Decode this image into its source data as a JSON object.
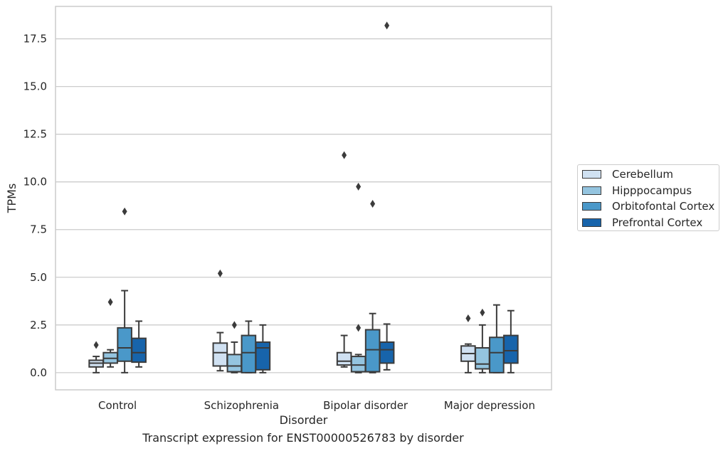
{
  "chart_data": {
    "type": "box",
    "title": "",
    "caption": "Transcript expression for ENST00000526783 by disorder",
    "xlabel": "Disorder",
    "ylabel": "TPMs",
    "ylim": [
      -0.9,
      19.2
    ],
    "yticks": [
      "0.0",
      "2.5",
      "5.0",
      "7.5",
      "10.0",
      "12.5",
      "15.0",
      "17.5"
    ],
    "categories": [
      "Control",
      "Schizophrenia",
      "Bipolar disorder",
      "Major depression"
    ],
    "grid": true,
    "legend_position": "right",
    "series": [
      {
        "name": "Cerebellum",
        "color": "#d0e1f2",
        "boxes": [
          {
            "whisker_low": 0.0,
            "q1": 0.3,
            "median": 0.5,
            "q3": 0.65,
            "whisker_high": 0.85,
            "outliers": [
              1.45
            ]
          },
          {
            "whisker_low": 0.1,
            "q1": 0.35,
            "median": 1.05,
            "q3": 1.55,
            "whisker_high": 2.1,
            "outliers": [
              5.2
            ]
          },
          {
            "whisker_low": 0.3,
            "q1": 0.4,
            "median": 0.6,
            "q3": 1.05,
            "whisker_high": 1.95,
            "outliers": [
              11.4
            ]
          },
          {
            "whisker_low": 0.0,
            "q1": 0.6,
            "median": 1.0,
            "q3": 1.4,
            "whisker_high": 1.5,
            "outliers": [
              2.85
            ]
          }
        ]
      },
      {
        "name": "Hipppocampus",
        "color": "#94c4df",
        "boxes": [
          {
            "whisker_low": 0.3,
            "q1": 0.5,
            "median": 0.75,
            "q3": 1.05,
            "whisker_high": 1.2,
            "outliers": [
              3.7
            ]
          },
          {
            "whisker_low": 0.0,
            "q1": 0.05,
            "median": 0.35,
            "q3": 0.95,
            "whisker_high": 1.6,
            "outliers": [
              2.5
            ]
          },
          {
            "whisker_low": 0.0,
            "q1": 0.05,
            "median": 0.4,
            "q3": 0.85,
            "whisker_high": 0.95,
            "outliers": [
              2.35,
              9.75
            ]
          },
          {
            "whisker_low": 0.0,
            "q1": 0.2,
            "median": 0.45,
            "q3": 1.3,
            "whisker_high": 2.5,
            "outliers": [
              3.15
            ]
          }
        ]
      },
      {
        "name": "Orbitofontal Cortex",
        "color": "#4a98c9",
        "boxes": [
          {
            "whisker_low": 0.0,
            "q1": 0.6,
            "median": 1.3,
            "q3": 2.35,
            "whisker_high": 4.3,
            "outliers": [
              8.45
            ]
          },
          {
            "whisker_low": 0.0,
            "q1": 0.0,
            "median": 1.05,
            "q3": 1.95,
            "whisker_high": 2.7,
            "outliers": []
          },
          {
            "whisker_low": 0.0,
            "q1": 0.05,
            "median": 1.2,
            "q3": 2.25,
            "whisker_high": 3.1,
            "outliers": [
              8.85
            ]
          },
          {
            "whisker_low": 0.0,
            "q1": 0.0,
            "median": 1.05,
            "q3": 1.85,
            "whisker_high": 3.55,
            "outliers": []
          }
        ]
      },
      {
        "name": "Prefrontal Cortex",
        "color": "#1764ab",
        "boxes": [
          {
            "whisker_low": 0.3,
            "q1": 0.55,
            "median": 1.05,
            "q3": 1.8,
            "whisker_high": 2.7,
            "outliers": []
          },
          {
            "whisker_low": 0.0,
            "q1": 0.15,
            "median": 1.3,
            "q3": 1.6,
            "whisker_high": 2.5,
            "outliers": []
          },
          {
            "whisker_low": 0.15,
            "q1": 0.5,
            "median": 1.2,
            "q3": 1.6,
            "whisker_high": 2.55,
            "outliers": [
              18.2
            ]
          },
          {
            "whisker_low": 0.0,
            "q1": 0.5,
            "median": 1.15,
            "q3": 1.95,
            "whisker_high": 3.25,
            "outliers": []
          }
        ]
      }
    ]
  }
}
